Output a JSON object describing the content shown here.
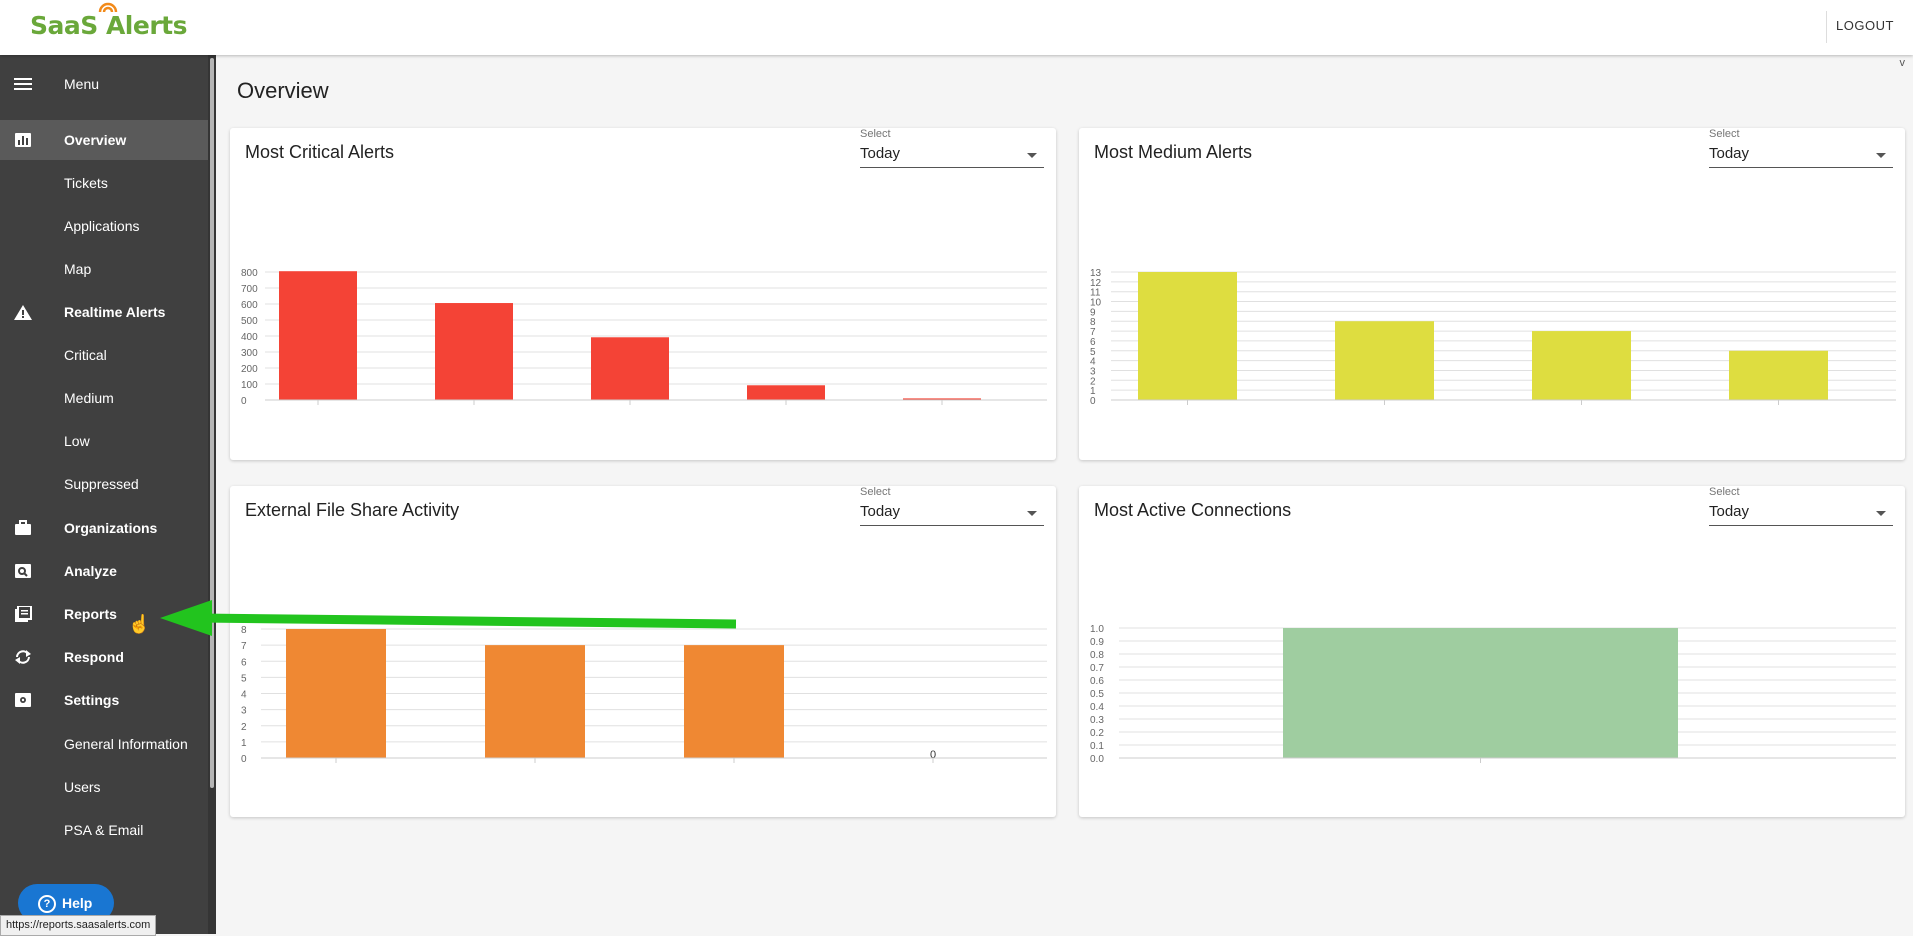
{
  "app": {
    "logo": "SaaS Alerts",
    "logout_label": "LOGOUT",
    "version": "v"
  },
  "sidebar": {
    "menu_label": "Menu",
    "items": [
      {
        "label": "Overview",
        "icon": "bar-chart-icon",
        "bold": true,
        "active": true
      },
      {
        "label": "Tickets",
        "sub": true
      },
      {
        "label": "Applications",
        "sub": true
      },
      {
        "label": "Map",
        "sub": true
      },
      {
        "label": "Realtime Alerts",
        "icon": "warning-icon",
        "bold": true
      },
      {
        "label": "Critical",
        "sub": true
      },
      {
        "label": "Medium",
        "sub": true
      },
      {
        "label": "Low",
        "sub": true
      },
      {
        "label": "Suppressed",
        "sub": true
      },
      {
        "label": "Organizations",
        "icon": "briefcase-icon",
        "bold": true
      },
      {
        "label": "Analyze",
        "icon": "search-doc-icon",
        "bold": true
      },
      {
        "label": "Reports",
        "icon": "reports-icon",
        "bold": true
      },
      {
        "label": "Respond",
        "icon": "refresh-icon",
        "bold": true
      },
      {
        "label": "Settings",
        "icon": "settings-icon",
        "bold": true
      },
      {
        "label": "General Information",
        "sub": true
      },
      {
        "label": "Users",
        "sub": true
      },
      {
        "label": "PSA & Email",
        "sub": true
      }
    ],
    "help_label": "Help"
  },
  "status_url": "https://reports.saasalerts.com",
  "page": {
    "title": "Overview"
  },
  "cards": [
    {
      "title": "Most Critical Alerts",
      "select_label": "Select",
      "select_value": "Today"
    },
    {
      "title": "Most Medium Alerts",
      "select_label": "Select",
      "select_value": "Today"
    },
    {
      "title": "External File Share Activity",
      "select_label": "Select",
      "select_value": "Today"
    },
    {
      "title": "Most Active Connections",
      "select_label": "Select",
      "select_value": "Today"
    }
  ],
  "colors": {
    "critical": "#f44336",
    "medium": "#dedd40",
    "fileshare": "#ef8833",
    "connections": "#9fcda0",
    "arrow": "#22c41e"
  },
  "chart_data": [
    {
      "type": "bar",
      "title": "Most Critical Alerts",
      "values": [
        805,
        606,
        392,
        92,
        10
      ],
      "yticks": [
        "0",
        "100",
        "200",
        "300",
        "400",
        "500",
        "600",
        "700",
        "800"
      ],
      "ylim": [
        0,
        800
      ],
      "grid": true
    },
    {
      "type": "bar",
      "title": "Most Medium Alerts",
      "values": [
        13,
        8,
        7,
        5
      ],
      "yticks": [
        "0",
        "1",
        "2",
        "3",
        "4",
        "5",
        "6",
        "7",
        "8",
        "9",
        "10",
        "11",
        "12",
        "13"
      ],
      "ylim": [
        0,
        13
      ],
      "grid": true
    },
    {
      "type": "bar",
      "title": "External File Share Activity",
      "values": [
        8,
        7,
        7,
        0
      ],
      "data_labels": [
        "",
        "",
        "",
        "0"
      ],
      "yticks": [
        "0",
        "1",
        "2",
        "3",
        "4",
        "5",
        "6",
        "7",
        "8"
      ],
      "ylim": [
        0,
        8
      ],
      "grid": true
    },
    {
      "type": "bar",
      "title": "Most Active Connections",
      "values": [
        1.0
      ],
      "yticks": [
        "0.0",
        "0.1",
        "0.2",
        "0.3",
        "0.4",
        "0.5",
        "0.6",
        "0.7",
        "0.8",
        "0.9",
        "1.0"
      ],
      "ylim": [
        0,
        1.0
      ],
      "grid": true
    }
  ]
}
